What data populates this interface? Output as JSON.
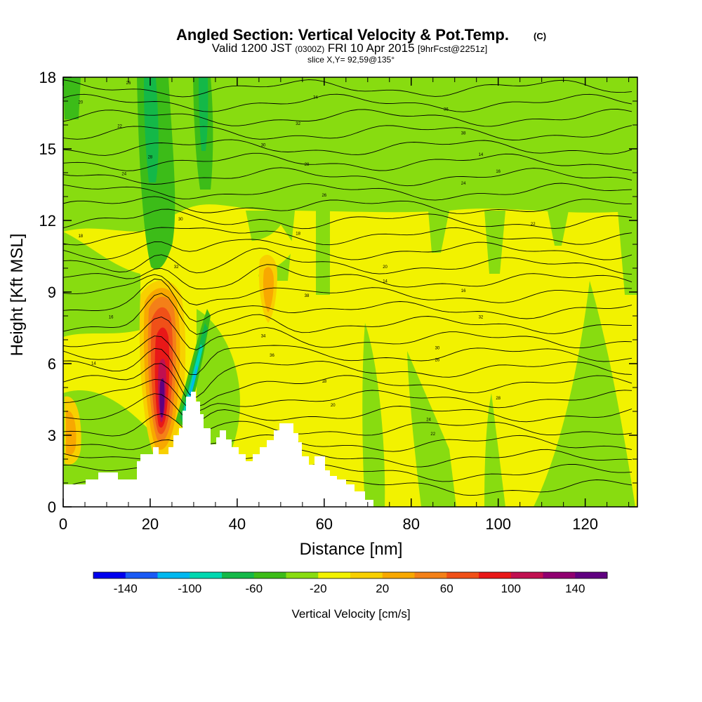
{
  "header": {
    "title_main": "Angled Section: Vertical Velocity & Pot.Temp.",
    "title_unit": "(C)",
    "valid_prefix": "Valid 1200 JST",
    "valid_zulu": "(0300Z)",
    "valid_date": "FRI 10 Apr 2015",
    "valid_fcst": "[9hrFcst@2251z]",
    "slice": "slice X,Y= 92,59@135°"
  },
  "chart_data": {
    "type": "heatmap",
    "xlabel": "Distance [nm]",
    "ylabel": "Height [Kft MSL]",
    "xlim": [
      0,
      132
    ],
    "ylim": [
      0,
      18
    ],
    "x_ticks": [
      0,
      20,
      40,
      60,
      80,
      100,
      120
    ],
    "y_ticks": [
      0,
      3,
      6,
      9,
      12,
      15,
      18
    ],
    "x_tick_labels": [
      "0",
      "20",
      "40",
      "60",
      "80",
      "100",
      "120"
    ],
    "y_tick_labels": [
      "0",
      "3",
      "6",
      "9",
      "12",
      "15",
      "18"
    ],
    "colorbar": {
      "label": "Vertical Velocity [cm/s]",
      "range": [
        -160,
        160
      ],
      "step": 20,
      "tick_values": [
        -140,
        -100,
        -60,
        -20,
        20,
        60,
        100,
        140
      ],
      "tick_labels": [
        "-140",
        "-100",
        "-60",
        "-20",
        "20",
        "60",
        "100",
        "140"
      ],
      "colors": [
        "#0000ee",
        "#1a5af5",
        "#00b8f0",
        "#00d8b0",
        "#14b848",
        "#3cbc18",
        "#88dc10",
        "#f2f200",
        "#f8d000",
        "#f8a800",
        "#f48018",
        "#f05018",
        "#e81818",
        "#c01050",
        "#900070",
        "#600080"
      ]
    },
    "isentrope_labels": [
      "14",
      "16",
      "18",
      "20",
      "22",
      "24",
      "26",
      "28",
      "30",
      "32",
      "34",
      "36",
      "38"
    ]
  }
}
